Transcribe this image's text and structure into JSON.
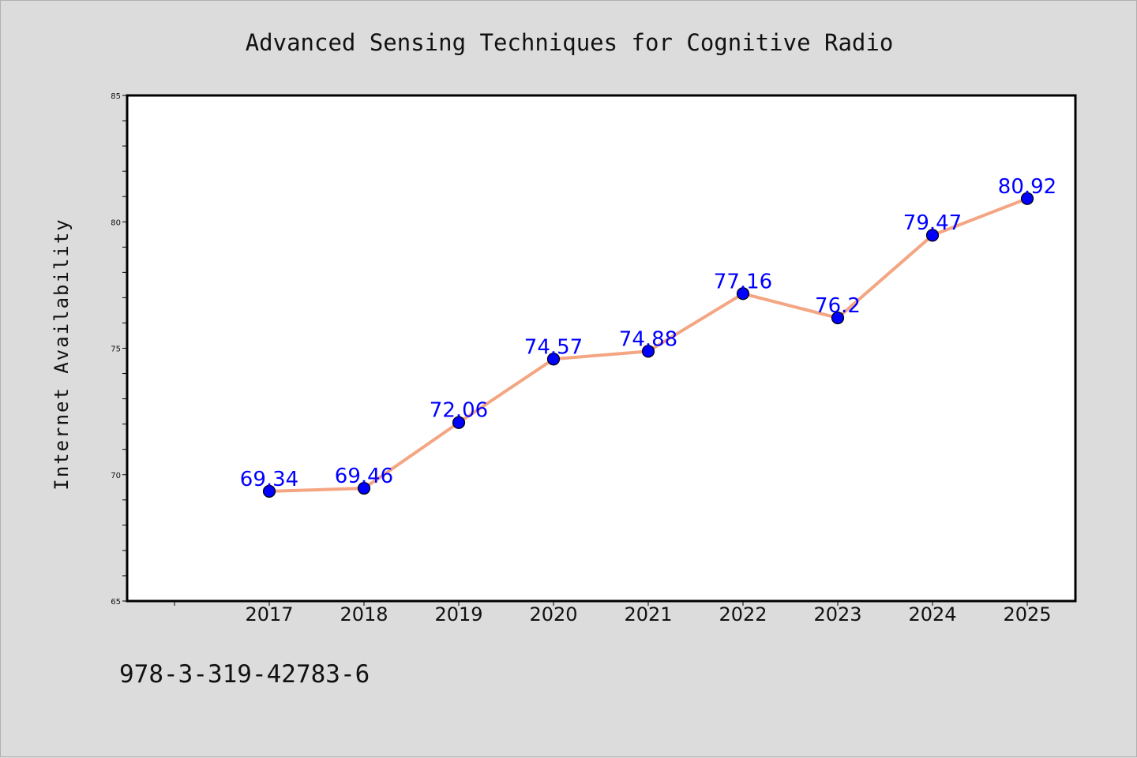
{
  "footer_text": "978-3-319-42783-6",
  "colors": {
    "line": "#f4a582",
    "marker": "#0000ff",
    "label": "#0000ff",
    "background": "#dcdcdc",
    "plot_bg": "#ffffff"
  },
  "chart_data": {
    "type": "line",
    "title": "Advanced Sensing Techniques for Cognitive Radio",
    "xlabel": "",
    "ylabel": "Internet Availability",
    "categories": [
      "2017",
      "2018",
      "2019",
      "2020",
      "2021",
      "2022",
      "2023",
      "2024",
      "2025"
    ],
    "values": [
      69.34,
      69.46,
      72.06,
      74.57,
      74.88,
      77.16,
      76.2,
      79.47,
      80.92
    ],
    "data_labels": [
      "69.34",
      "69.46",
      "72.06",
      "74.57",
      "74.88",
      "77.16",
      "76.2",
      "79.47",
      "80.92"
    ],
    "ylim": [
      65,
      85
    ],
    "yticks": [
      "65",
      "70",
      "75",
      "80",
      "85"
    ],
    "grid": false,
    "legend": "none"
  }
}
